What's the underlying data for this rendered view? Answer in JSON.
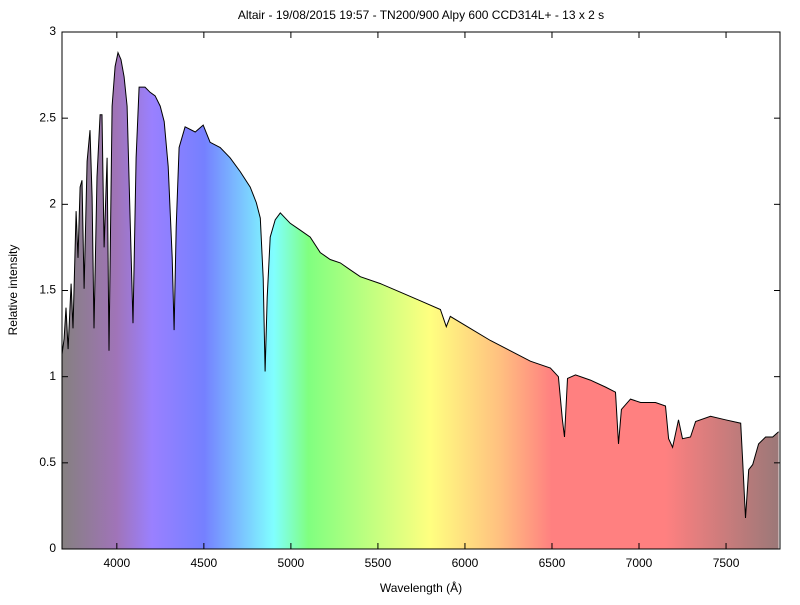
{
  "chart_data": {
    "type": "spectrum",
    "title": "Altair - 19/08/2015 19:57 - TN200/900 Alpy 600 CCD314L+ - 13 x 2 s",
    "xlabel": "Wavelength (Å)",
    "ylabel": "Relative intensity",
    "x": [
      3685,
      3697,
      3708,
      3720,
      3737,
      3748,
      3766,
      3777,
      3789,
      3800,
      3812,
      3829,
      3846,
      3858,
      3869,
      3886,
      3904,
      3915,
      3927,
      3944,
      3955,
      3973,
      3990,
      4007,
      4024,
      4042,
      4059,
      4076,
      4093,
      4111,
      4128,
      4162,
      4191,
      4220,
      4249,
      4272,
      4295,
      4318,
      4329,
      4341,
      4358,
      4392,
      4450,
      4496,
      4536,
      4594,
      4651,
      4709,
      4766,
      4801,
      4824,
      4841,
      4852,
      4864,
      4881,
      4910,
      4939,
      4996,
      5054,
      5111,
      5169,
      5226,
      5284,
      5341,
      5399,
      5514,
      5629,
      5744,
      5859,
      5893,
      5916,
      6031,
      6146,
      6261,
      6376,
      6491,
      6537,
      6560,
      6572,
      6589,
      6635,
      6721,
      6807,
      6865,
      6882,
      6899,
      6951,
      7009,
      7095,
      7152,
      7170,
      7193,
      7227,
      7250,
      7296,
      7325,
      7411,
      7497,
      7584,
      7595,
      7612,
      7630,
      7653,
      7687,
      7727,
      7768,
      7802
    ],
    "series": [
      {
        "color": "#000000",
        "values": [
          1.13,
          1.22,
          1.4,
          1.16,
          1.54,
          1.28,
          1.96,
          1.69,
          2.1,
          2.14,
          1.51,
          2.25,
          2.43,
          2.04,
          1.28,
          2.16,
          2.52,
          2.52,
          1.75,
          2.27,
          1.15,
          2.57,
          2.8,
          2.88,
          2.84,
          2.74,
          2.57,
          1.92,
          1.31,
          2.27,
          2.68,
          2.68,
          2.65,
          2.63,
          2.57,
          2.48,
          2.22,
          1.69,
          1.27,
          1.87,
          2.33,
          2.45,
          2.42,
          2.46,
          2.36,
          2.33,
          2.27,
          2.19,
          2.1,
          2.01,
          1.92,
          1.57,
          1.03,
          1.46,
          1.81,
          1.91,
          1.95,
          1.89,
          1.85,
          1.81,
          1.72,
          1.68,
          1.66,
          1.62,
          1.58,
          1.54,
          1.49,
          1.44,
          1.39,
          1.29,
          1.35,
          1.28,
          1.21,
          1.15,
          1.09,
          1.05,
          1.0,
          0.75,
          0.65,
          0.99,
          1.01,
          0.98,
          0.94,
          0.91,
          0.61,
          0.81,
          0.87,
          0.85,
          0.85,
          0.83,
          0.64,
          0.59,
          0.75,
          0.64,
          0.65,
          0.74,
          0.77,
          0.75,
          0.73,
          0.52,
          0.18,
          0.46,
          0.49,
          0.61,
          0.65,
          0.65,
          0.68
        ]
      }
    ],
    "xlim": [
      3685,
      7810
    ],
    "ylim": [
      0,
      3
    ],
    "xticks": [
      4000,
      4500,
      5000,
      5500,
      6000,
      6500,
      7000,
      7500
    ],
    "yticks": [
      0,
      0.5,
      1,
      1.5,
      2,
      2.5,
      3
    ]
  }
}
